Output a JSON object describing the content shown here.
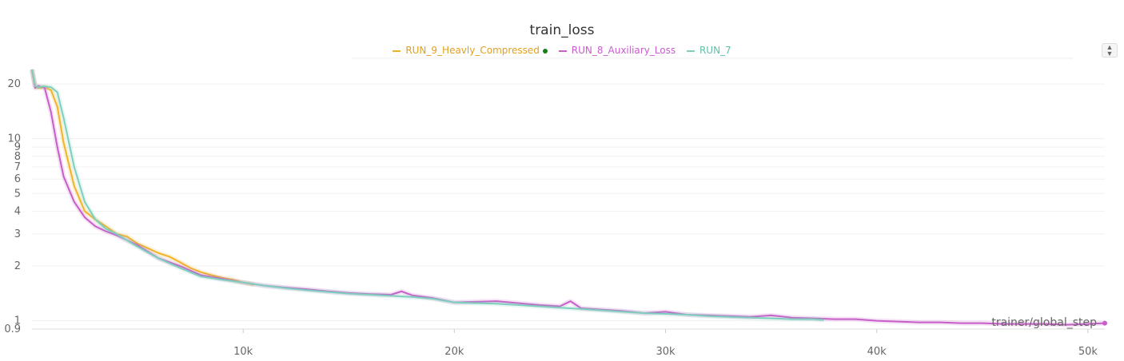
{
  "chart_data": {
    "type": "line",
    "title": "train_loss",
    "xlabel": "trainer/global_step",
    "ylabel": "",
    "xlim": [
      0,
      50800
    ],
    "ylim": [
      0.9,
      25
    ],
    "y_scale": "log",
    "grid": true,
    "x_ticks": [
      10000,
      20000,
      30000,
      40000,
      50000
    ],
    "x_tick_labels": [
      "10k",
      "20k",
      "30k",
      "40k",
      "50k"
    ],
    "y_ticks": [
      0.9,
      1,
      2,
      3,
      4,
      5,
      6,
      7,
      8,
      9,
      10,
      20
    ],
    "y_tick_labels": [
      "0.9",
      "1",
      "2",
      "3",
      "4",
      "5",
      "6",
      "7",
      "8",
      "9",
      "10",
      "20"
    ],
    "legend_position": "top-center",
    "series": [
      {
        "name": "RUN_9_Heavly_Compressed",
        "color": "#f0b429",
        "x": [
          0,
          150,
          300,
          600,
          900,
          1200,
          1500,
          2000,
          2500,
          3000,
          3500,
          4000,
          4500,
          5000,
          5500,
          6000,
          6500,
          7000,
          7500,
          8000,
          8500,
          9000,
          9500,
          10000,
          10500
        ],
        "y": [
          24,
          19.5,
          19,
          19.2,
          18.5,
          15,
          9.5,
          5.5,
          4.0,
          3.6,
          3.3,
          3.0,
          2.9,
          2.65,
          2.5,
          2.35,
          2.25,
          2.1,
          1.95,
          1.85,
          1.78,
          1.72,
          1.68,
          1.62,
          1.58
        ]
      },
      {
        "name": "RUN_8_Auxiliary_Loss",
        "color": "#c75ec9",
        "x": [
          0,
          150,
          300,
          600,
          900,
          1200,
          1500,
          2000,
          2500,
          3000,
          3500,
          4000,
          5000,
          6000,
          7000,
          8000,
          9000,
          10000,
          11000,
          12000,
          13000,
          14000,
          15000,
          16000,
          17000,
          17500,
          18000,
          19000,
          20000,
          21000,
          22000,
          23000,
          24000,
          25000,
          25500,
          26000,
          27000,
          28000,
          29000,
          30000,
          31000,
          32000,
          33000,
          34000,
          35000,
          36000,
          37000,
          38000,
          39000,
          40000,
          41000,
          42000,
          43000,
          44000,
          45000,
          46000,
          47000,
          48000,
          49000,
          50000,
          50800
        ],
        "y": [
          24,
          19,
          19.5,
          19,
          14,
          9,
          6.2,
          4.5,
          3.7,
          3.3,
          3.1,
          2.95,
          2.6,
          2.2,
          2.0,
          1.78,
          1.7,
          1.62,
          1.56,
          1.52,
          1.49,
          1.45,
          1.42,
          1.4,
          1.39,
          1.45,
          1.38,
          1.33,
          1.26,
          1.27,
          1.28,
          1.25,
          1.22,
          1.2,
          1.28,
          1.17,
          1.15,
          1.13,
          1.1,
          1.12,
          1.08,
          1.07,
          1.06,
          1.05,
          1.07,
          1.04,
          1.03,
          1.02,
          1.02,
          1.0,
          0.99,
          0.98,
          0.98,
          0.97,
          0.97,
          0.96,
          0.96,
          0.96,
          0.95,
          0.96,
          0.97
        ]
      },
      {
        "name": "RUN_7",
        "color": "#7fcfbe",
        "x": [
          0,
          150,
          300,
          600,
          900,
          1200,
          1500,
          2000,
          2500,
          3000,
          3500,
          4000,
          5000,
          6000,
          7000,
          8000,
          9000,
          10000,
          11000,
          12000,
          13000,
          14000,
          15000,
          16000,
          17000,
          18000,
          19000,
          20000,
          21000,
          22000,
          23000,
          24000,
          25000,
          26000,
          27000,
          28000,
          29000,
          30000,
          31000,
          32000,
          33000,
          34000,
          35000,
          36000,
          37000,
          37500
        ],
        "y": [
          24,
          19.5,
          19.2,
          19.4,
          19.2,
          18,
          13,
          7,
          4.5,
          3.6,
          3.2,
          3.0,
          2.55,
          2.2,
          1.95,
          1.75,
          1.68,
          1.62,
          1.56,
          1.51,
          1.47,
          1.44,
          1.41,
          1.39,
          1.37,
          1.35,
          1.32,
          1.26,
          1.25,
          1.24,
          1.22,
          1.2,
          1.18,
          1.16,
          1.14,
          1.12,
          1.1,
          1.09,
          1.08,
          1.06,
          1.05,
          1.04,
          1.03,
          1.02,
          1.02,
          1.01
        ]
      }
    ]
  }
}
